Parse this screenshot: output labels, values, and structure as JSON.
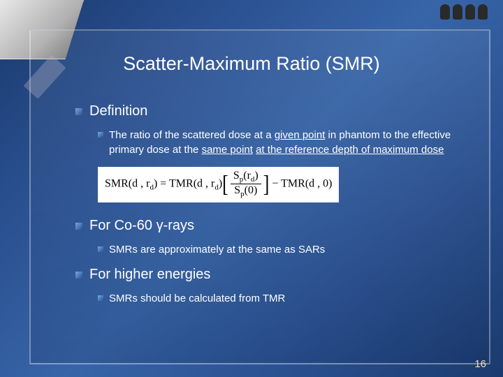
{
  "title": "Scatter-Maximum Ratio (SMR)",
  "sections": {
    "s1": {
      "heading": "Definition",
      "body_pre": "The ratio of the scattered dose at a ",
      "u1": "given point",
      "body_mid1": " in phantom to the effective primary dose at the ",
      "u2": "same point",
      "body_mid2": " ",
      "u3": "at the reference depth of maximum dose"
    },
    "formula": {
      "lhs1": "SMR",
      "lhs2": "(d , r",
      "lhs_sub": "d",
      "lhs3": ")",
      "eq": " = ",
      "t1a": "TMR",
      "t1b": "(d , r",
      "t1_sub": "d",
      "t1c": ")",
      "num_a": "S",
      "num_sub1": "p",
      "num_b": "(r",
      "num_sub2": "d",
      "num_c": ")",
      "den_a": "S",
      "den_sub": "p",
      "den_b": "(0)",
      "minus": " − ",
      "t2": "TMR",
      "t2b": "(d , 0)"
    },
    "s2": {
      "heading": "For Co-60 γ-rays",
      "body": "SMRs are approximately at the same as SARs"
    },
    "s3": {
      "heading": "For higher energies",
      "body": "SMRs should be calculated from TMR"
    }
  },
  "page_number": "16",
  "colors": {
    "text": "#ffffff",
    "page_num": "#f5deb3",
    "bg_dark": "#1a3a6e",
    "bg_light": "#3765a8"
  }
}
